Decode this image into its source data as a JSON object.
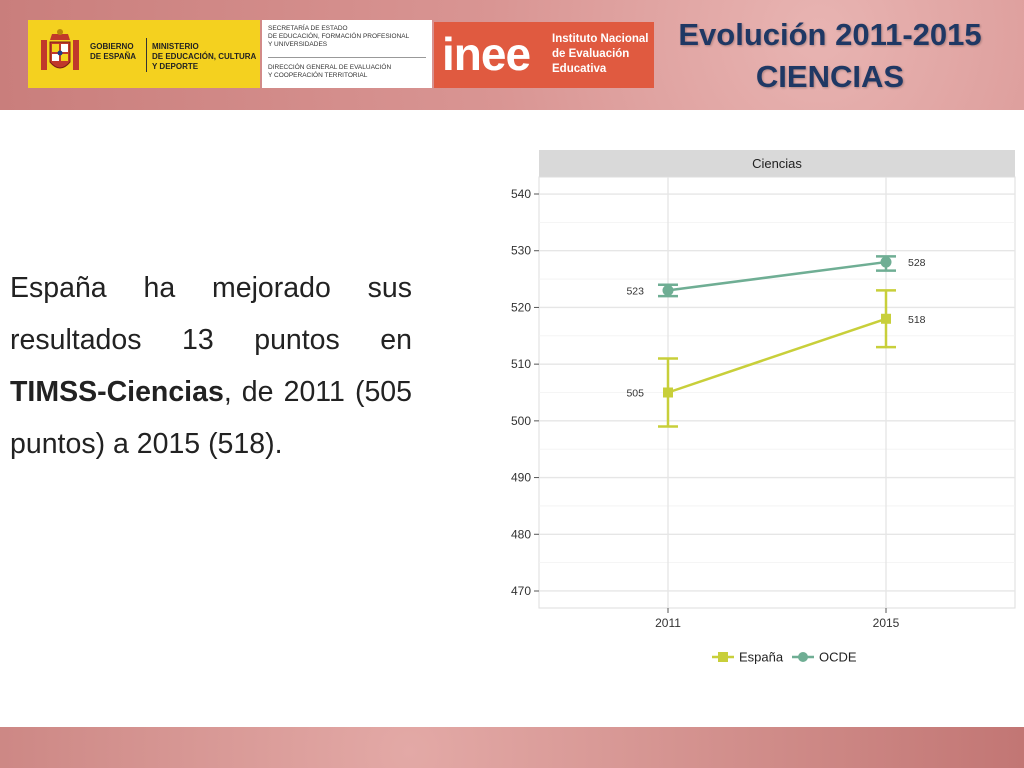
{
  "header": {
    "government": {
      "line1": "GOBIERNO",
      "line2": "DE ESPAÑA"
    },
    "ministry": {
      "line1": "MINISTERIO",
      "line2": "DE EDUCACIÓN, CULTURA",
      "line3": "Y DEPORTE"
    },
    "secretaria": {
      "top": "SECRETARÍA DE ESTADO\nDE EDUCACIÓN, FORMACIÓN PROFESIONAL\nY UNIVERSIDADES",
      "bottom": "DIRECCIÓN GENERAL DE EVALUACIÓN\nY COOPERACIÓN TERRITORIAL"
    },
    "inee": {
      "logo": "inee",
      "name": "Instituto Nacional\nde Evaluación\nEducativa"
    },
    "title_line1": "Evolución 2011-2015",
    "title_line2": "CIENCIAS"
  },
  "body": {
    "part1": "España ha mejorado sus resultados 13 puntos en ",
    "bold": "TIMSS-Ciencias",
    "part2": ", de 2011 (505 puntos) a 2015 (518)."
  },
  "colors": {
    "title": "#1f3864",
    "header_band": "#d99593",
    "logo_yellow": "#f4d11f",
    "inee_red": "#e05a40",
    "espana": "#c8cf3a",
    "ocde": "#6fae94"
  },
  "chart_data": {
    "type": "line",
    "title": "Ciencias",
    "x": [
      2011,
      2015
    ],
    "x_ticks": [
      "2011",
      "2015"
    ],
    "ylim": [
      467,
      543
    ],
    "y_ticks": [
      470,
      480,
      490,
      500,
      510,
      520,
      530,
      540
    ],
    "grid": true,
    "legend_position": "bottom",
    "series": [
      {
        "name": "España",
        "marker": "square",
        "color": "#c8cf3a",
        "values": [
          505,
          518
        ],
        "labels": [
          "505",
          "518"
        ],
        "error_low": [
          499,
          513
        ],
        "error_high": [
          511,
          523
        ]
      },
      {
        "name": "OCDE",
        "marker": "circle",
        "color": "#6fae94",
        "values": [
          523,
          528
        ],
        "labels": [
          "523",
          "528"
        ],
        "error_low": [
          522,
          526.5
        ],
        "error_high": [
          524,
          529
        ]
      }
    ]
  }
}
